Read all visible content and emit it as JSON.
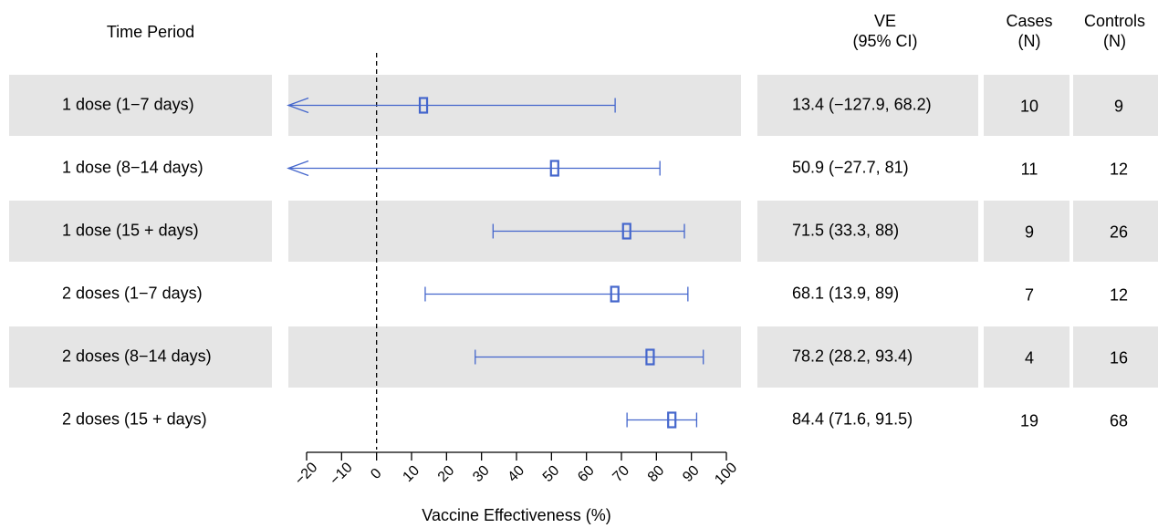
{
  "headers": {
    "time_period": "Time Period",
    "ve_line1": "VE",
    "ve_line2": "(95% CI)",
    "cases_line1": "Cases",
    "cases_line2": "(N)",
    "controls_line1": "Controls",
    "controls_line2": "(N)"
  },
  "colors": {
    "band": "#e5e5e5",
    "marker": "#4466cc",
    "reference": "#000000"
  },
  "chart_data": {
    "type": "forest",
    "title": "",
    "xlabel": "Vaccine Effectiveness (%)",
    "ylabel": "",
    "xlim": [
      -20,
      100
    ],
    "xticks": [
      -20,
      -10,
      0,
      10,
      20,
      30,
      40,
      50,
      60,
      70,
      80,
      90,
      100
    ],
    "tick_labels": [
      "−20",
      "−10",
      "0",
      "10",
      "20",
      "30",
      "40",
      "50",
      "60",
      "70",
      "80",
      "90",
      "100"
    ],
    "reference_line": 0,
    "grid": false,
    "rows": [
      {
        "label": "1 dose (1−7 days)",
        "estimate": 13.4,
        "lower": -127.9,
        "upper": 68.2,
        "lower_truncated": true,
        "ve_text": "13.4 (−127.9, 68.2)",
        "cases": "10",
        "controls": "9",
        "shaded": true
      },
      {
        "label": "1 dose (8−14 days)",
        "estimate": 50.9,
        "lower": -27.7,
        "upper": 81,
        "lower_truncated": true,
        "ve_text": "50.9 (−27.7, 81)",
        "cases": "11",
        "controls": "12",
        "shaded": false
      },
      {
        "label": "1 dose (15 + days)",
        "estimate": 71.5,
        "lower": 33.3,
        "upper": 88,
        "lower_truncated": false,
        "ve_text": "71.5 (33.3, 88)",
        "cases": "9",
        "controls": "26",
        "shaded": true
      },
      {
        "label": "2 doses (1−7 days)",
        "estimate": 68.1,
        "lower": 13.9,
        "upper": 89,
        "lower_truncated": false,
        "ve_text": "68.1 (13.9, 89)",
        "cases": "7",
        "controls": "12",
        "shaded": false
      },
      {
        "label": "2 doses (8−14 days)",
        "estimate": 78.2,
        "lower": 28.2,
        "upper": 93.4,
        "lower_truncated": false,
        "ve_text": "78.2 (28.2, 93.4)",
        "cases": "4",
        "controls": "16",
        "shaded": true
      },
      {
        "label": "2 doses (15 + days)",
        "estimate": 84.4,
        "lower": 71.6,
        "upper": 91.5,
        "lower_truncated": false,
        "ve_text": "84.4 (71.6, 91.5)",
        "cases": "19",
        "controls": "68",
        "shaded": false
      }
    ]
  }
}
